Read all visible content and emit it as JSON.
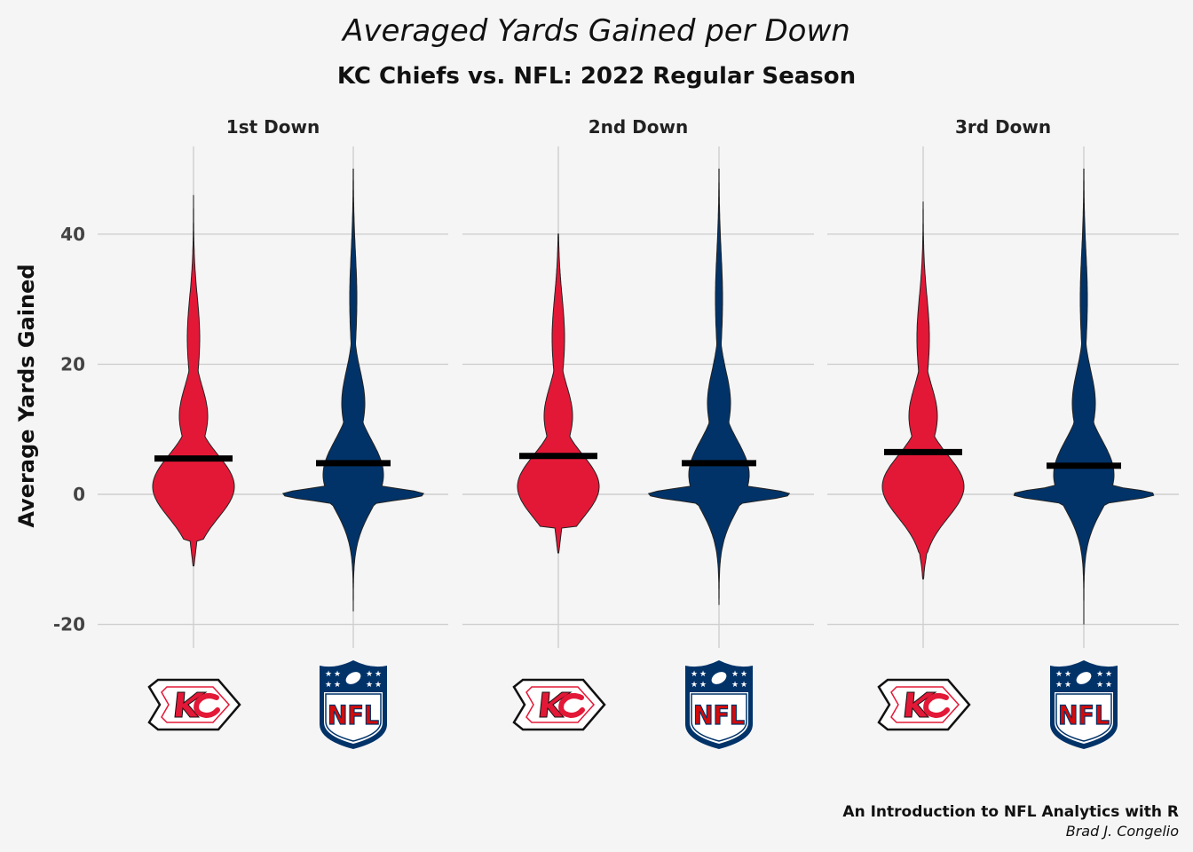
{
  "chart_data": {
    "type": "violin",
    "title": "Averaged Yards Gained per Down",
    "subtitle": "KC Chiefs vs. NFL: 2022 Regular Season",
    "ylabel": "Average Yards Gained",
    "xlabel": "",
    "ylim": [
      -23,
      55
    ],
    "yticks": [
      -20,
      0,
      20,
      40
    ],
    "grid": true,
    "facets": [
      "1st Down",
      "2nd Down",
      "3rd Down"
    ],
    "groups": [
      {
        "name": "KC Chiefs",
        "logo": "chiefs-logo",
        "color": "#E31837"
      },
      {
        "name": "NFL",
        "logo": "nfl-logo",
        "color": "#013369"
      }
    ],
    "series": [
      {
        "facet": "1st Down",
        "group": "KC Chiefs",
        "min": -11,
        "max": 46,
        "mean": 5.5
      },
      {
        "facet": "1st Down",
        "group": "NFL",
        "min": -18,
        "max": 50,
        "mean": 4.8
      },
      {
        "facet": "2nd Down",
        "group": "KC Chiefs",
        "min": -9,
        "max": 40,
        "mean": 5.9
      },
      {
        "facet": "2nd Down",
        "group": "NFL",
        "min": -17,
        "max": 50,
        "mean": 4.8
      },
      {
        "facet": "3rd Down",
        "group": "KC Chiefs",
        "min": -13,
        "max": 45,
        "mean": 6.5
      },
      {
        "facet": "3rd Down",
        "group": "NFL",
        "min": -20,
        "max": 50,
        "mean": 4.4
      }
    ],
    "caption": {
      "line1": "An Introduction to NFL Analytics with R",
      "line2": "Brad J. Congelio"
    }
  }
}
